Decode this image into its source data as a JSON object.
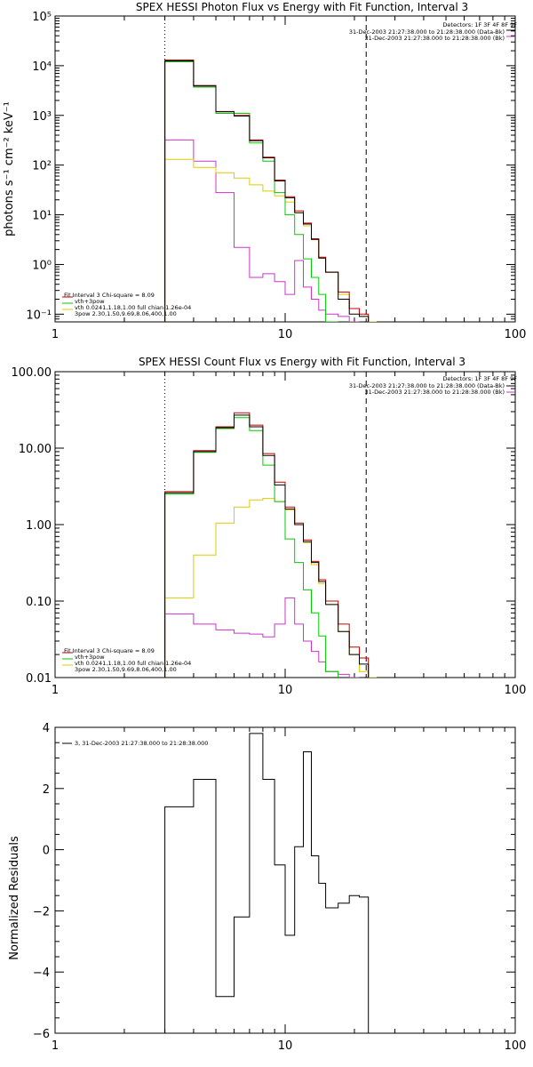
{
  "chart_data": [
    {
      "type": "line",
      "title": "SPEX HESSI Photon Flux vs Energy with Fit Function, Interval 3",
      "ylabel": "photons s⁻¹ cm⁻² keV⁻¹",
      "xlabel": "",
      "x_scale": "log",
      "y_scale": "log",
      "xlim": [
        1,
        100
      ],
      "ylim": [
        0.07,
        100000
      ],
      "xtick_labels": [
        "1",
        "10",
        "100"
      ],
      "ytick_labels": [
        "10⁻¹",
        "10⁰",
        "10¹",
        "10²",
        "10³",
        "10⁴",
        "10⁵"
      ],
      "detectors_label": "Detectors: 1F 3F 4F 8F 9F",
      "legend_top": [
        {
          "label": "31-Dec-2003 21:27:38.000 to 21:28:38.000 (Data-Bk)",
          "color": "#000000"
        },
        {
          "label": "31-Dec-2003 21:27:38.000 to 21:28:38.000 (Bk)",
          "color": "#cc33cc"
        }
      ],
      "fit_legend_title": "Fit Interval 3   Chi-square = 8.09",
      "fit_legend": [
        {
          "label": "vth+3pow",
          "color": "#cc0000"
        },
        {
          "label": "vth 0.0241,1.18,1.00  full chian 1.26e-04",
          "color": "#00cc00"
        },
        {
          "label": "3pow 2.30,1.50,9.69,8.06,400,1.00",
          "color": "#ddcc00"
        }
      ],
      "vlines": [
        {
          "x": 3.0,
          "style": "dotted"
        },
        {
          "x": 22.5,
          "style": "dashed"
        }
      ],
      "bin_edges": [
        3,
        4,
        5,
        6,
        7,
        8,
        9,
        10,
        11,
        12,
        13,
        14,
        15,
        17,
        19,
        21,
        23,
        25
      ],
      "series": [
        {
          "name": "Data-Bk",
          "color": "#000000",
          "values": [
            12500,
            3900,
            1180,
            970,
            310,
            140,
            48,
            22,
            11,
            6.5,
            3.2,
            1.35,
            0.7,
            0.2,
            0.1,
            0.09
          ]
        },
        {
          "name": "vth+3pow",
          "color": "#cc0000",
          "values": [
            13000,
            4000,
            1200,
            1000,
            320,
            145,
            50,
            23,
            12,
            6.8,
            3.3,
            1.4,
            0.7,
            0.28,
            0.13,
            0.1
          ]
        },
        {
          "name": "vth",
          "color": "#00cc00",
          "values": [
            12000,
            3700,
            1100,
            1100,
            280,
            120,
            28,
            10,
            4,
            1.3,
            0.55,
            0.25,
            0.07
          ]
        },
        {
          "name": "3pow",
          "color": "#ddcc00",
          "values": [
            130,
            90,
            70,
            55,
            40,
            30,
            24,
            18,
            11,
            6,
            3.2,
            1.35,
            0.7,
            0.25,
            0.13,
            0.09,
            0.06
          ]
        },
        {
          "name": "Bk",
          "color": "#cc33cc",
          "values": [
            320,
            120,
            28,
            2.2,
            0.55,
            0.65,
            0.45,
            0.25,
            1.2,
            0.35,
            0.2,
            0.12,
            0.1,
            0.09,
            0.07
          ]
        }
      ]
    },
    {
      "type": "line",
      "title": "SPEX HESSI Count Flux vs Energy with Fit Function, Interval 3",
      "ylabel": "",
      "xlabel": "",
      "x_scale": "log",
      "y_scale": "log",
      "xlim": [
        1,
        100
      ],
      "ylim": [
        0.01,
        100
      ],
      "xtick_labels": [
        "1",
        "10",
        "100"
      ],
      "ytick_labels": [
        "0.01",
        "0.10",
        "1.00",
        "10.00",
        "100.00"
      ],
      "detectors_label": "Detectors: 1F 3F 4F 8F 9F",
      "legend_top": [
        {
          "label": "31-Dec-2003 21:27:38.000 to 21:28:38.000 (Data-Bk)",
          "color": "#000000"
        },
        {
          "label": "31-Dec-2003 21:27:38.000 to 21:28:38.000 (Bk)",
          "color": "#cc33cc"
        }
      ],
      "fit_legend_title": "Fit Interval 3   Chi-square = 8.09",
      "fit_legend": [
        {
          "label": "vth+3pow",
          "color": "#cc0000"
        },
        {
          "label": "vth 0.0241,1.18,1.00  full chian 1.26e-04",
          "color": "#00cc00"
        },
        {
          "label": "3pow 2.30,1.50,9.69,8.06,400,1.00",
          "color": "#ddcc00"
        }
      ],
      "vlines": [
        {
          "x": 3.0,
          "style": "dotted"
        },
        {
          "x": 22.5,
          "style": "dashed"
        }
      ],
      "bin_edges": [
        3,
        4,
        5,
        6,
        7,
        8,
        9,
        10,
        11,
        12,
        13,
        14,
        15,
        17,
        19,
        21,
        23,
        25
      ],
      "series": [
        {
          "name": "Data-Bk",
          "color": "#000000",
          "values": [
            2.6,
            9.0,
            18.5,
            27.0,
            19.0,
            8.0,
            3.3,
            1.6,
            1.0,
            0.6,
            0.32,
            0.18,
            0.09,
            0.04,
            0.02,
            0.015
          ]
        },
        {
          "name": "vth+3pow",
          "color": "#cc0000",
          "values": [
            2.7,
            9.3,
            19.0,
            29.0,
            20.0,
            8.5,
            3.6,
            1.7,
            1.05,
            0.63,
            0.33,
            0.19,
            0.1,
            0.05,
            0.025,
            0.018
          ]
        },
        {
          "name": "vth",
          "color": "#00cc00",
          "values": [
            2.5,
            8.8,
            18.0,
            25.0,
            17.0,
            6.0,
            2.0,
            0.65,
            0.32,
            0.14,
            0.07,
            0.035,
            0.012
          ]
        },
        {
          "name": "3pow",
          "color": "#ddcc00",
          "values": [
            0.11,
            0.4,
            1.05,
            1.7,
            2.1,
            2.2,
            2.0,
            1.55,
            1.0,
            0.58,
            0.3,
            0.17,
            0.09,
            0.04,
            0.02,
            0.012,
            0.008
          ]
        },
        {
          "name": "Bk",
          "color": "#cc33cc",
          "values": [
            0.068,
            0.05,
            0.042,
            0.038,
            0.037,
            0.034,
            0.05,
            0.11,
            0.05,
            0.03,
            0.022,
            0.016,
            0.012,
            0.011,
            0.009
          ]
        }
      ]
    },
    {
      "type": "line",
      "title": "",
      "ylabel": "Normalized Residuals",
      "xlabel": "",
      "x_scale": "log",
      "y_scale": "linear",
      "xlim": [
        1,
        100
      ],
      "ylim": [
        -6,
        4
      ],
      "xtick_labels": [
        "1",
        "10",
        "100"
      ],
      "ytick_labels": [
        "−6",
        "−4",
        "−2",
        "0",
        "2",
        "4"
      ],
      "legend_top": [
        {
          "label": "3, 31-Dec-2003 21:27:38.000 to 21:28:38.000",
          "color": "#000000"
        }
      ],
      "bin_edges": [
        3,
        4,
        5,
        6,
        7,
        8,
        9,
        10,
        11,
        12,
        13,
        14,
        15,
        17,
        19,
        21,
        23
      ],
      "series": [
        {
          "name": "",
          "color": "#000000",
          "values": [
            1.4,
            2.3,
            -4.8,
            -2.2,
            3.8,
            2.3,
            -0.5,
            -2.8,
            0.1,
            3.2,
            -0.2,
            -1.1,
            -1.9,
            -1.75,
            -1.5,
            -1.55
          ]
        }
      ]
    }
  ]
}
